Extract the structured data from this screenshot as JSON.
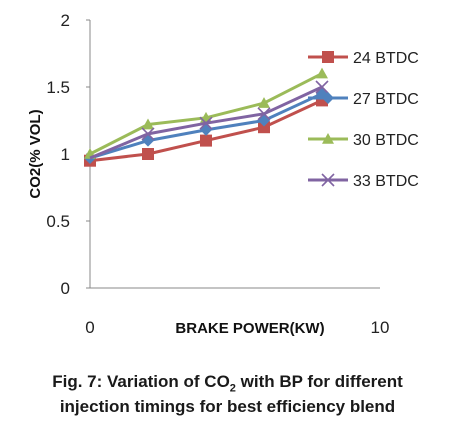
{
  "chart_data": {
    "type": "line",
    "x_axis_label": "BRAKE POWER(KW)",
    "y_axis_label": "CO2(% VOL)",
    "xlim": [
      0,
      10
    ],
    "ylim": [
      0,
      2
    ],
    "x_ticks": [
      "0",
      "10"
    ],
    "y_ticks": [
      "0",
      "0.5",
      "1",
      "1.5",
      "2"
    ],
    "legend_position": "right",
    "grid": false,
    "x": [
      0,
      2,
      4,
      6,
      8
    ],
    "series": [
      {
        "name": "24 BTDC",
        "color": "#c0504d",
        "marker": "square",
        "values": [
          0.95,
          1.0,
          1.1,
          1.2,
          1.4
        ]
      },
      {
        "name": "27 BTDC",
        "color": "#4f81bd",
        "marker": "diamond",
        "values": [
          0.97,
          1.1,
          1.18,
          1.25,
          1.45
        ]
      },
      {
        "name": "30 BTDC",
        "color": "#9bbb59",
        "marker": "triangle",
        "values": [
          1.0,
          1.22,
          1.27,
          1.38,
          1.6
        ]
      },
      {
        "name": "33 BTDC",
        "color": "#8064a2",
        "marker": "x",
        "values": [
          0.97,
          1.15,
          1.23,
          1.3,
          1.5
        ]
      }
    ]
  },
  "caption": {
    "line1_prefix": "Fig. 7: Variation of CO",
    "line1_sub": "2",
    "line1_suffix": " with BP for different",
    "line2": "injection timings for best efficiency blend"
  }
}
